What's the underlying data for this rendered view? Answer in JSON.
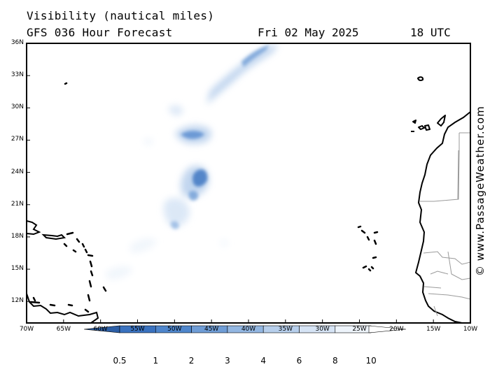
{
  "title": {
    "variable": "Visibility (nautical miles)",
    "model_run": "GFS 036 Hour Forecast",
    "date": "Fri 02 May 2025",
    "time": "18 UTC"
  },
  "credit": "© www.PassageWeather.com",
  "map": {
    "lat_range": [
      10,
      36
    ],
    "lon_range": [
      -70,
      -10
    ],
    "lat_labels": [
      "36N",
      "33N",
      "30N",
      "27N",
      "24N",
      "21N",
      "18N",
      "15N",
      "12N"
    ],
    "lon_labels": [
      "70W",
      "65W",
      "60W",
      "55W",
      "50W",
      "45W",
      "40W",
      "35W",
      "30W",
      "25W",
      "20W",
      "15W",
      "10W"
    ],
    "visibility_areas": [
      {
        "lon": -42.0,
        "lat": 34.2,
        "level": 2
      },
      {
        "lon": -43.5,
        "lat": 33.4,
        "level": 3
      },
      {
        "lon": -45.5,
        "lat": 32.2,
        "level": 6
      },
      {
        "lon": -48.5,
        "lat": 29.8,
        "level": 8
      },
      {
        "lon": -47.2,
        "lat": 27.8,
        "level": 3
      },
      {
        "lon": -45.5,
        "lat": 28.6,
        "level": 4
      },
      {
        "lon": -45.8,
        "lat": 23.5,
        "level": 1
      },
      {
        "lon": -46.5,
        "lat": 22.3,
        "level": 2
      },
      {
        "lon": -48.0,
        "lat": 20.8,
        "level": 4
      },
      {
        "lon": -50.5,
        "lat": 19.0,
        "level": 6
      },
      {
        "lon": -47.5,
        "lat": 19.5,
        "level": 6
      },
      {
        "lon": -55.5,
        "lat": 15.2,
        "level": 8
      },
      {
        "lon": -52.5,
        "lat": 16.8,
        "level": 8
      }
    ],
    "land_color": "#ffffff",
    "coast_color": "#000000",
    "border_color": "#9a9a9a"
  },
  "colorbar": {
    "ticks": [
      "0.5",
      "1",
      "2",
      "3",
      "4",
      "6",
      "8",
      "10"
    ],
    "colors": [
      "#3a72bf",
      "#4f86cc",
      "#6f9dd6",
      "#93b7e2",
      "#b7cfec",
      "#d6e4f5",
      "#eef4fb",
      "#ffffff"
    ]
  }
}
